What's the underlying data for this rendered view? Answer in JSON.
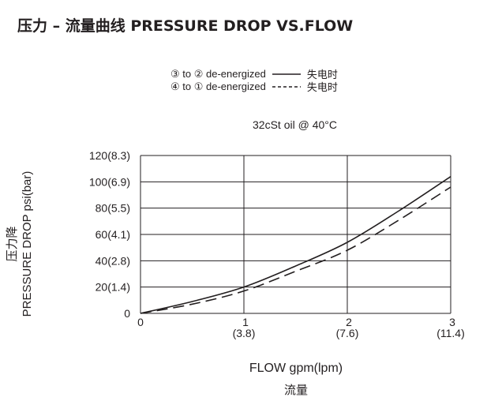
{
  "title": "压力 – 流量曲线 PRESSURE DROP VS.FLOW",
  "legend": [
    {
      "label": "③ to ② de-energized",
      "cn": "失电时",
      "style": "solid"
    },
    {
      "label": "④ to ① de-energized",
      "cn": "失电时",
      "style": "dashed"
    }
  ],
  "condition": "32cSt  oil @ 40°C",
  "chart_data": {
    "type": "line",
    "title": "压力 – 流量曲线 PRESSURE DROP VS.FLOW",
    "xlabel": "FLOW gpm(lpm)",
    "xlabel_cn": "流量",
    "ylabel": "PRESSURE DROP psi(bar)",
    "ylabel_cn": "压力降",
    "xlim": [
      0,
      3
    ],
    "ylim": [
      0,
      120
    ],
    "x_ticks": [
      {
        "v": 0,
        "l": "0",
        "l2": ""
      },
      {
        "v": 1,
        "l": "1",
        "l2": "(3.8)"
      },
      {
        "v": 2,
        "l": "2",
        "l2": "(7.6)"
      },
      {
        "v": 3,
        "l": "3",
        "l2": "(11.4)"
      }
    ],
    "y_ticks": [
      {
        "v": 0,
        "l": "0"
      },
      {
        "v": 20,
        "l": "20(1.4)"
      },
      {
        "v": 40,
        "l": "40(2.8)"
      },
      {
        "v": 60,
        "l": "60(4.1)"
      },
      {
        "v": 80,
        "l": "80(5.5)"
      },
      {
        "v": 100,
        "l": "100(6.9)"
      },
      {
        "v": 120,
        "l": "120(8.3)"
      }
    ],
    "grid": true,
    "series": [
      {
        "name": "③ to ② de-energized",
        "style": "solid",
        "x": [
          0,
          0.5,
          1,
          1.5,
          2,
          2.5,
          3
        ],
        "y": [
          0,
          9,
          20,
          36,
          54,
          78,
          104
        ]
      },
      {
        "name": "④ to ① de-energized",
        "style": "dashed",
        "x": [
          0,
          0.5,
          1,
          1.5,
          2,
          2.5,
          3
        ],
        "y": [
          0,
          7,
          17,
          32,
          48,
          71,
          96
        ]
      }
    ]
  }
}
